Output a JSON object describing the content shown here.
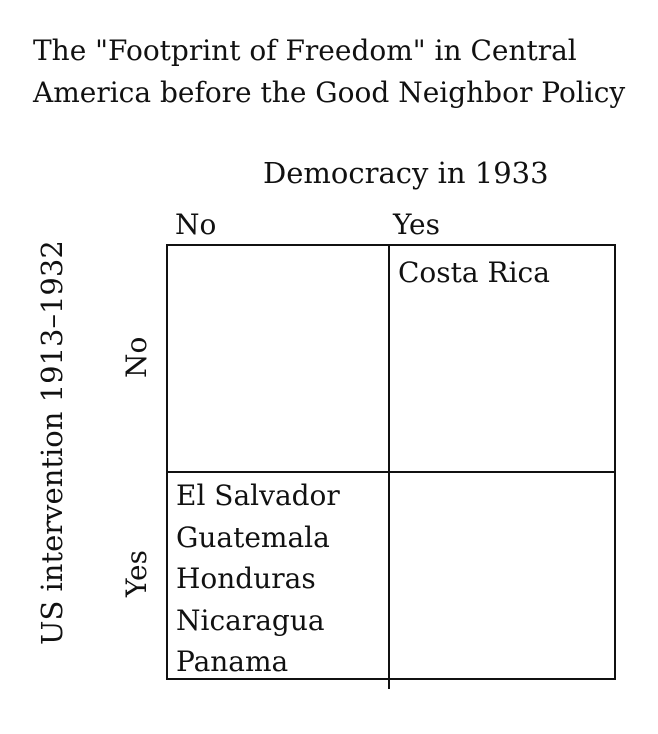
{
  "title": {
    "line1": "The \"Footprint of Freedom\" in Central",
    "line2": "America before the Good Neighbor Policy"
  },
  "columns": {
    "axis_label": "Democracy in 1933",
    "headers": [
      "No",
      "Yes"
    ]
  },
  "rows": {
    "axis_label": "US intervention 1913–1932",
    "headers": [
      "No",
      "Yes"
    ]
  },
  "cells": {
    "no_no": [],
    "no_yes": [
      "Costa Rica"
    ],
    "yes_no": [
      "El Salvador",
      "Guatemala",
      "Honduras",
      "Nicaragua",
      "Panama"
    ],
    "yes_yes": []
  }
}
